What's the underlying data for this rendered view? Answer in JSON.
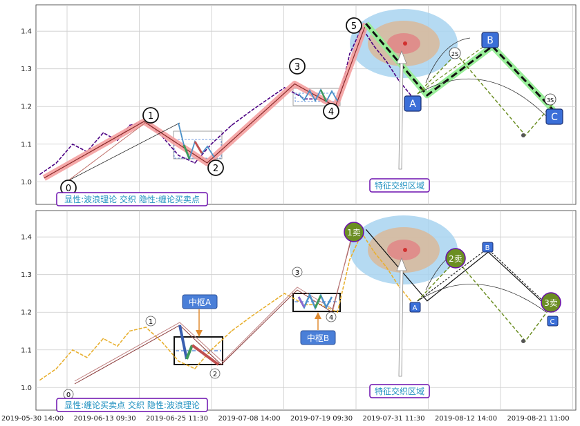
{
  "chart_data": [
    {
      "type": "line",
      "panel": "top",
      "y_ticks": [
        "1.0",
        "1.1",
        "1.2",
        "1.3",
        "1.4"
      ],
      "ylim": [
        0.94,
        1.47
      ],
      "grid": true,
      "caption": "显性:波浪理论 交织 隐性:缠论买卖点",
      "zone_label": "特征交织区域",
      "wave_labels": [
        "0",
        "1",
        "2",
        "3",
        "4",
        "5"
      ],
      "abc_labels": [
        "A",
        "B",
        "C"
      ],
      "projection_labels": [
        "2S",
        "3S"
      ],
      "price_series": [
        {
          "x": 0.2,
          "y": 1.02
        },
        {
          "x": 1.0,
          "y": 1.05
        },
        {
          "x": 1.8,
          "y": 1.1
        },
        {
          "x": 2.5,
          "y": 1.08
        },
        {
          "x": 3.3,
          "y": 1.13
        },
        {
          "x": 4.0,
          "y": 1.11
        },
        {
          "x": 4.6,
          "y": 1.15
        },
        {
          "x": 5.4,
          "y": 1.16
        },
        {
          "x": 6.2,
          "y": 1.12
        },
        {
          "x": 7.0,
          "y": 1.07
        },
        {
          "x": 7.8,
          "y": 1.05
        },
        {
          "x": 8.6,
          "y": 1.1
        },
        {
          "x": 9.6,
          "y": 1.15
        },
        {
          "x": 10.6,
          "y": 1.19
        },
        {
          "x": 11.4,
          "y": 1.22
        },
        {
          "x": 12.2,
          "y": 1.25
        },
        {
          "x": 13.2,
          "y": 1.22
        },
        {
          "x": 14.0,
          "y": 1.22
        },
        {
          "x": 14.8,
          "y": 1.2
        },
        {
          "x": 15.4,
          "y": 1.34
        },
        {
          "x": 16.0,
          "y": 1.41
        },
        {
          "x": 16.6,
          "y": 1.36
        },
        {
          "x": 17.2,
          "y": 1.32
        },
        {
          "x": 17.8,
          "y": 1.27
        },
        {
          "x": 18.4,
          "y": 1.23
        }
      ],
      "wave_path": [
        {
          "x": 0.4,
          "y": 1.01
        },
        {
          "x": 5.3,
          "y": 1.16
        },
        {
          "x": 8.4,
          "y": 1.05
        },
        {
          "x": 12.7,
          "y": 1.26
        },
        {
          "x": 14.7,
          "y": 1.2
        },
        {
          "x": 16.2,
          "y": 1.42
        }
      ],
      "abc_path": [
        {
          "x": 16.2,
          "y": 1.42
        },
        {
          "x": 19.2,
          "y": 1.23
        },
        {
          "x": 22.4,
          "y": 1.36
        },
        {
          "x": 25.4,
          "y": 1.19
        }
      ]
    },
    {
      "type": "line",
      "panel": "bottom",
      "y_ticks": [
        "1.0",
        "1.1",
        "1.2",
        "1.3",
        "1.4"
      ],
      "ylim": [
        0.94,
        1.47
      ],
      "grid": true,
      "caption": "显性:缠论买卖点 交织 隐性:波浪理论",
      "zone_label": "特征交织区域",
      "wave_labels": [
        "0",
        "1",
        "2",
        "3",
        "4"
      ],
      "pivot_labels": [
        "中枢A",
        "中枢B"
      ],
      "sell_labels": [
        "1卖",
        "2卖",
        "3卖"
      ],
      "abc_labels": [
        "A",
        "B",
        "C"
      ],
      "x_ticks": [
        "2019-05-30 14:00",
        "2019-06-13 09:30",
        "2019-06-25 11:30",
        "2019-07-08 14:00",
        "2019-07-19 09:30",
        "2019-07-31 11:30",
        "2019-08-12 14:00",
        "2019-08-21 11:00"
      ],
      "price_series": [
        {
          "x": 0.2,
          "y": 1.02
        },
        {
          "x": 1.0,
          "y": 1.05
        },
        {
          "x": 1.8,
          "y": 1.1
        },
        {
          "x": 2.5,
          "y": 1.08
        },
        {
          "x": 3.3,
          "y": 1.13
        },
        {
          "x": 4.0,
          "y": 1.11
        },
        {
          "x": 4.6,
          "y": 1.15
        },
        {
          "x": 5.4,
          "y": 1.16
        },
        {
          "x": 6.2,
          "y": 1.12
        },
        {
          "x": 7.0,
          "y": 1.07
        },
        {
          "x": 7.8,
          "y": 1.05
        },
        {
          "x": 8.6,
          "y": 1.1
        },
        {
          "x": 9.6,
          "y": 1.15
        },
        {
          "x": 10.6,
          "y": 1.19
        },
        {
          "x": 11.4,
          "y": 1.22
        },
        {
          "x": 12.2,
          "y": 1.25
        },
        {
          "x": 13.2,
          "y": 1.22
        },
        {
          "x": 14.0,
          "y": 1.22
        },
        {
          "x": 14.8,
          "y": 1.2
        },
        {
          "x": 15.4,
          "y": 1.34
        },
        {
          "x": 16.0,
          "y": 1.41
        },
        {
          "x": 16.6,
          "y": 1.36
        },
        {
          "x": 17.2,
          "y": 1.32
        },
        {
          "x": 17.8,
          "y": 1.27
        },
        {
          "x": 18.4,
          "y": 1.23
        }
      ],
      "wave_path": [
        {
          "x": 0.6,
          "y": 1.01
        },
        {
          "x": 6.5,
          "y": 1.16
        },
        {
          "x": 8.4,
          "y": 1.06
        },
        {
          "x": 12.5,
          "y": 1.26
        },
        {
          "x": 14.7,
          "y": 1.21
        },
        {
          "x": 16.2,
          "y": 1.42
        }
      ],
      "abc_path": [
        {
          "x": 16.2,
          "y": 1.42
        },
        {
          "x": 19.2,
          "y": 1.23
        },
        {
          "x": 22.2,
          "y": 1.36
        },
        {
          "x": 25.4,
          "y": 1.2
        }
      ]
    }
  ],
  "colors": {
    "price": "#4b0082",
    "price_bottom": "#e8b030",
    "wave_highlight": "#f4a0a0",
    "abc_green": "#99ee99",
    "dashed_green": "#6b8e23",
    "label_box_fill": "#ffffff",
    "label_box_stroke": "#6a0dad",
    "label_text": "#1e90c0",
    "abc_box": "#3b6fd8",
    "sell_circle": "#6b8e23",
    "pivot_label": "#4a7fd8"
  }
}
